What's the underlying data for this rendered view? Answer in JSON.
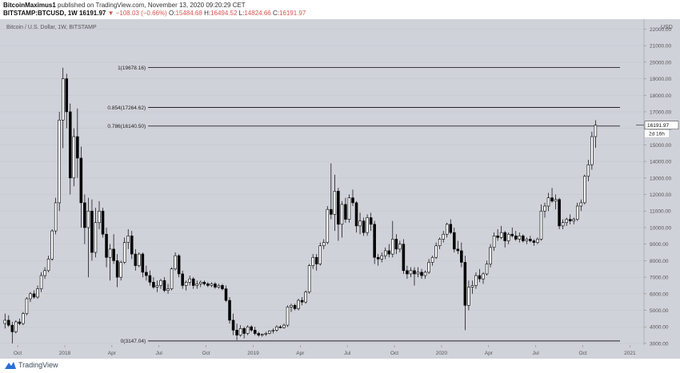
{
  "header": {
    "author": "BitcoinMaximus1",
    "published_text": "published on TradingView.com, November 13, 2020 09:20:29 CET",
    "symbol": "BITSTAMP:BTCUSD, 1W",
    "last": "16191.97",
    "change": "▼ −108.03 (−0.66%)",
    "o_label": "O:",
    "o": "15484.68",
    "h_label": "H:",
    "h": "16494.52",
    "l_label": "L:",
    "l": "14824.66",
    "c_label": "C:",
    "c": "16191.97"
  },
  "footer": {
    "brand": "TradingView"
  },
  "colors": {
    "plot_bg": "#d0d2da",
    "candle_up": "#ffffff",
    "candle_down": "#000000",
    "fib_line": "#222222",
    "grid": "#c4c6ce"
  },
  "chart_data": {
    "type": "candlestick",
    "title": "Bitcoin / U.S. Dollar, 1W, BITSTAMP",
    "currency_label": "USD",
    "ylim": [
      2900,
      22600
    ],
    "y_ticks": [
      3000,
      4000,
      5000,
      6000,
      7000,
      8000,
      9000,
      10000,
      11000,
      12000,
      13000,
      14000,
      15000,
      16000,
      17000,
      18000,
      19000,
      20000,
      21000,
      22000
    ],
    "y_tick_labels": [
      "3000.00",
      "4000.00",
      "5000.00",
      "6000.00",
      "7000.00",
      "8000.00",
      "9000.00",
      "10000.00",
      "11000.00",
      "12000.00",
      "13000.00",
      "14000.00",
      "15000.00",
      "16000.00",
      "17000.00",
      "18000.00",
      "19000.00",
      "20000.00",
      "21000.00",
      "22000.00"
    ],
    "x_ticks": [
      {
        "label": "Oct",
        "week": 4
      },
      {
        "label": "2018",
        "week": 17
      },
      {
        "label": "Apr",
        "week": 30
      },
      {
        "label": "Jul",
        "week": 43
      },
      {
        "label": "Oct",
        "week": 56
      },
      {
        "label": "2019",
        "week": 69
      },
      {
        "label": "Apr",
        "week": 82
      },
      {
        "label": "Jul",
        "week": 95
      },
      {
        "label": "Oct",
        "week": 108
      },
      {
        "label": "2020",
        "week": 121
      },
      {
        "label": "Apr",
        "week": 134
      },
      {
        "label": "Jul",
        "week": 147
      },
      {
        "label": "Oct",
        "week": 160
      },
      {
        "label": "2021",
        "week": 173
      }
    ],
    "x_range_weeks": [
      0,
      176
    ],
    "fib_levels": [
      {
        "label": "1(19678.16)",
        "value": 19678.16
      },
      {
        "label": "0.854(17264.62)",
        "value": 17264.62
      },
      {
        "label": "0.786(16140.50)",
        "value": 16140.5
      },
      {
        "label": "0(3147.04)",
        "value": 3147.04
      }
    ],
    "fib_start_week": 40,
    "last_price": 16191.97,
    "last_price_label": "16191.97",
    "countdown_label": "2d 16h",
    "candles": [
      [
        4200,
        4800,
        3900,
        4400
      ],
      [
        4400,
        4700,
        4000,
        4100
      ],
      [
        4100,
        4300,
        3000,
        3700
      ],
      [
        3700,
        4400,
        3600,
        4300
      ],
      [
        4300,
        4500,
        4100,
        4200
      ],
      [
        4200,
        4900,
        4100,
        4800
      ],
      [
        4800,
        5800,
        4700,
        5700
      ],
      [
        5700,
        6100,
        5500,
        6000
      ],
      [
        6000,
        6200,
        5700,
        5800
      ],
      [
        5800,
        6500,
        5700,
        6300
      ],
      [
        6300,
        7300,
        6100,
        7100
      ],
      [
        7100,
        7600,
        6900,
        7400
      ],
      [
        7400,
        8300,
        7300,
        8100
      ],
      [
        8100,
        9900,
        8000,
        9800
      ],
      [
        9800,
        11800,
        9600,
        11500
      ],
      [
        11500,
        17000,
        11000,
        16500
      ],
      [
        16500,
        19666,
        14800,
        19000
      ],
      [
        19000,
        19300,
        16000,
        17000
      ],
      [
        17000,
        17500,
        12000,
        13000
      ],
      [
        13000,
        16000,
        12500,
        15500
      ],
      [
        15500,
        17200,
        13000,
        14200
      ],
      [
        14200,
        14900,
        10000,
        11500
      ],
      [
        11500,
        12000,
        9000,
        10000
      ],
      [
        10000,
        11800,
        7000,
        11000
      ],
      [
        11000,
        11700,
        8000,
        8500
      ],
      [
        8500,
        11200,
        8200,
        10300
      ],
      [
        10300,
        11600,
        9900,
        11000
      ],
      [
        11000,
        11200,
        9400,
        9600
      ],
      [
        9600,
        10000,
        7600,
        8200
      ],
      [
        8200,
        9000,
        6800,
        8700
      ],
      [
        8700,
        9600,
        7800,
        8000
      ],
      [
        8000,
        8400,
        6400,
        7000
      ],
      [
        7000,
        8000,
        6800,
        7900
      ],
      [
        7900,
        9400,
        7800,
        9100
      ],
      [
        9100,
        9900,
        8700,
        9500
      ],
      [
        9500,
        9800,
        8100,
        8400
      ],
      [
        8400,
        8700,
        7400,
        7700
      ],
      [
        7700,
        8500,
        7600,
        8400
      ],
      [
        8400,
        8500,
        7000,
        7300
      ],
      [
        7300,
        7700,
        6800,
        7100
      ],
      [
        7100,
        7400,
        6500,
        6700
      ],
      [
        6700,
        7000,
        6300,
        6400
      ],
      [
        6400,
        6800,
        6100,
        6500
      ],
      [
        6500,
        6900,
        6300,
        6800
      ],
      [
        6800,
        7000,
        6100,
        6200
      ],
      [
        6200,
        6600,
        6000,
        6300
      ],
      [
        6300,
        7600,
        6200,
        7500
      ],
      [
        7500,
        8500,
        7400,
        8300
      ],
      [
        8300,
        8400,
        7000,
        7200
      ],
      [
        7200,
        7400,
        6300,
        6500
      ],
      [
        6500,
        6800,
        6200,
        6700
      ],
      [
        6700,
        7100,
        6500,
        6900
      ],
      [
        6900,
        7000,
        6300,
        6500
      ],
      [
        6500,
        6800,
        6300,
        6600
      ],
      [
        6600,
        6800,
        6400,
        6700
      ],
      [
        6700,
        6800,
        6500,
        6600
      ],
      [
        6600,
        6700,
        6400,
        6500
      ],
      [
        6500,
        6700,
        6400,
        6600
      ],
      [
        6600,
        6700,
        6300,
        6400
      ],
      [
        6400,
        6600,
        6300,
        6500
      ],
      [
        6500,
        6600,
        6200,
        6300
      ],
      [
        6300,
        6500,
        5500,
        5600
      ],
      [
        5600,
        5800,
        4200,
        4400
      ],
      [
        4400,
        4800,
        3500,
        3800
      ],
      [
        3800,
        4200,
        3200,
        3500
      ],
      [
        3500,
        4100,
        3400,
        3900
      ],
      [
        3900,
        4000,
        3300,
        3600
      ],
      [
        3600,
        4100,
        3500,
        4000
      ],
      [
        4000,
        4100,
        3700,
        3800
      ],
      [
        3800,
        4000,
        3500,
        3600
      ],
      [
        3600,
        3700,
        3400,
        3500
      ],
      [
        3500,
        3600,
        3400,
        3550
      ],
      [
        3550,
        3700,
        3450,
        3600
      ],
      [
        3600,
        3800,
        3550,
        3750
      ],
      [
        3750,
        3900,
        3600,
        3800
      ],
      [
        3800,
        4100,
        3700,
        4000
      ],
      [
        4000,
        4100,
        3900,
        3950
      ],
      [
        3950,
        4200,
        3900,
        4100
      ],
      [
        4100,
        5300,
        4000,
        5200
      ],
      [
        5200,
        5400,
        4900,
        5300
      ],
      [
        5300,
        5400,
        5000,
        5100
      ],
      [
        5100,
        5700,
        5000,
        5600
      ],
      [
        5600,
        5800,
        5300,
        5500
      ],
      [
        5500,
        6200,
        5400,
        6100
      ],
      [
        6100,
        7800,
        6000,
        7700
      ],
      [
        7700,
        8400,
        7500,
        8200
      ],
      [
        8200,
        8400,
        7400,
        7800
      ],
      [
        7800,
        9100,
        7700,
        8900
      ],
      [
        8900,
        9300,
        8700,
        9100
      ],
      [
        9100,
        11300,
        9000,
        11100
      ],
      [
        11100,
        13880,
        10500,
        10800
      ],
      [
        10800,
        13200,
        9800,
        12200
      ],
      [
        12200,
        12400,
        9200,
        10200
      ],
      [
        10200,
        11600,
        9400,
        11400
      ],
      [
        11400,
        11800,
        10300,
        10500
      ],
      [
        10500,
        12000,
        10300,
        11800
      ],
      [
        11800,
        12300,
        11300,
        11500
      ],
      [
        11500,
        11600,
        9700,
        10100
      ],
      [
        10100,
        10900,
        9600,
        10400
      ],
      [
        10400,
        10600,
        9500,
        9700
      ],
      [
        9700,
        10800,
        9500,
        10600
      ],
      [
        10600,
        10900,
        9800,
        10200
      ],
      [
        10200,
        10400,
        7800,
        8200
      ],
      [
        8200,
        8400,
        7700,
        8100
      ],
      [
        8100,
        8500,
        7900,
        8300
      ],
      [
        8300,
        8800,
        8100,
        8600
      ],
      [
        8600,
        9000,
        8200,
        8400
      ],
      [
        8400,
        10400,
        8200,
        9300
      ],
      [
        9300,
        9600,
        8400,
        8700
      ],
      [
        8700,
        9200,
        8500,
        9000
      ],
      [
        9000,
        9300,
        7200,
        7400
      ],
      [
        7400,
        7700,
        6900,
        7200
      ],
      [
        7200,
        7600,
        7000,
        7400
      ],
      [
        7400,
        7600,
        6500,
        7200
      ],
      [
        7200,
        7600,
        7000,
        7300
      ],
      [
        7300,
        7500,
        6900,
        7100
      ],
      [
        7100,
        7400,
        6900,
        7300
      ],
      [
        7300,
        8100,
        7200,
        7900
      ],
      [
        7900,
        8300,
        7700,
        8200
      ],
      [
        8200,
        9100,
        8100,
        8900
      ],
      [
        8900,
        9400,
        8700,
        9300
      ],
      [
        9300,
        9800,
        9100,
        9600
      ],
      [
        9600,
        10300,
        9400,
        10200
      ],
      [
        10200,
        10500,
        9600,
        9700
      ],
      [
        9700,
        10000,
        8500,
        8700
      ],
      [
        8700,
        9200,
        8400,
        8600
      ],
      [
        8600,
        9100,
        7600,
        7900
      ],
      [
        7900,
        8300,
        3800,
        5300
      ],
      [
        5300,
        6800,
        5000,
        6400
      ],
      [
        6400,
        6800,
        6000,
        6500
      ],
      [
        6500,
        7300,
        6300,
        7100
      ],
      [
        7100,
        7500,
        6700,
        6900
      ],
      [
        6900,
        7300,
        6600,
        7200
      ],
      [
        7200,
        8000,
        7100,
        7800
      ],
      [
        7800,
        9000,
        7600,
        8800
      ],
      [
        8800,
        9700,
        8600,
        9500
      ],
      [
        9500,
        9900,
        9200,
        9400
      ],
      [
        9400,
        10100,
        9300,
        9700
      ],
      [
        9700,
        9800,
        8800,
        9200
      ],
      [
        9200,
        9700,
        9000,
        9600
      ],
      [
        9600,
        10000,
        9400,
        9500
      ],
      [
        9500,
        9800,
        9200,
        9300
      ],
      [
        9300,
        9700,
        9100,
        9500
      ],
      [
        9500,
        9600,
        9100,
        9200
      ],
      [
        9200,
        9400,
        9000,
        9300
      ],
      [
        9300,
        9500,
        9100,
        9200
      ],
      [
        9200,
        9300,
        8900,
        9100
      ],
      [
        9100,
        9400,
        9000,
        9300
      ],
      [
        9300,
        11400,
        9200,
        11000
      ],
      [
        11000,
        11500,
        10600,
        11300
      ],
      [
        11300,
        12100,
        11000,
        11800
      ],
      [
        11800,
        12400,
        11500,
        11600
      ],
      [
        11600,
        12000,
        11100,
        11700
      ],
      [
        11700,
        11800,
        9900,
        10100
      ],
      [
        10100,
        10500,
        9900,
        10300
      ],
      [
        10300,
        10600,
        10100,
        10500
      ],
      [
        10500,
        10800,
        10200,
        10400
      ],
      [
        10400,
        10600,
        10200,
        10500
      ],
      [
        10500,
        11500,
        10400,
        11300
      ],
      [
        11300,
        11700,
        11000,
        11500
      ],
      [
        11500,
        13200,
        11400,
        13100
      ],
      [
        13100,
        14100,
        12800,
        13800
      ],
      [
        13800,
        15800,
        13500,
        15500
      ],
      [
        15500,
        16494,
        14824,
        16192
      ]
    ]
  }
}
